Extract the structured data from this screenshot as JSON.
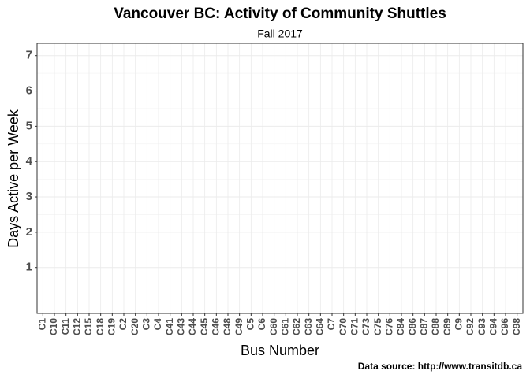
{
  "chart_data": {
    "type": "bar",
    "title": "Vancouver BC: Activity of Community Shuttles",
    "subtitle": "Fall 2017",
    "x_label": "Bus Number",
    "y_label": "Days Active per Week",
    "caption": "Data source: http://www.transitdb.ca",
    "categories": [
      "C1",
      "C10",
      "C11",
      "C12",
      "C15",
      "C18",
      "C19",
      "C2",
      "C20",
      "C3",
      "C4",
      "C41",
      "C43",
      "C44",
      "C45",
      "C46",
      "C48",
      "C49",
      "C5",
      "C6",
      "C60",
      "C61",
      "C62",
      "C63",
      "C64",
      "C7",
      "C70",
      "C71",
      "C73",
      "C75",
      "C76",
      "C84",
      "C86",
      "C87",
      "C88",
      "C89",
      "C9",
      "C92",
      "C93",
      "C94",
      "C96",
      "C98"
    ],
    "ylim": [
      -0.3,
      7.35
    ],
    "yticks": [
      1,
      2,
      3,
      4,
      5,
      6,
      7
    ],
    "grid": true
  }
}
